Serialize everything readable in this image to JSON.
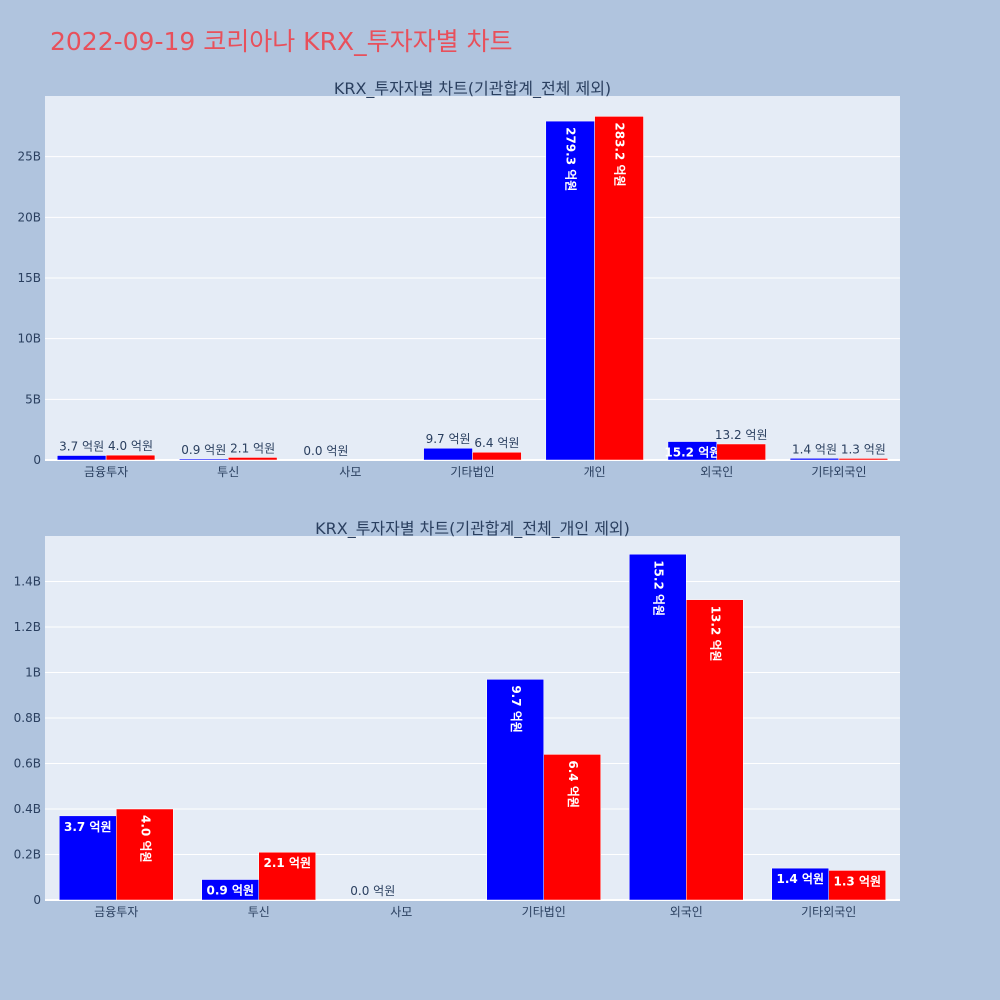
{
  "page_title": "2022-09-19 코리아나 KRX_투자자별 차트",
  "colors": {
    "buy": "#0000FF",
    "sell": "#FF0000",
    "plot_bg": "#E5ECF6",
    "page_bg": "#B0C4DE",
    "title": "#E8505B"
  },
  "chart_data": [
    {
      "type": "bar",
      "title": "KRX_투자자별 차트(기관합계_전체 제외)",
      "categories": [
        "금융투자",
        "투신",
        "사모",
        "기타법인",
        "개인",
        "외국인",
        "기타외국인"
      ],
      "series": [
        {
          "values": [
            370000000,
            90000000,
            0,
            970000000,
            27930000000,
            1520000000,
            140000000
          ],
          "labels": [
            "3.7 억원",
            "0.9 억원",
            "0.0 억원",
            "9.7 억원",
            "279.3 억원",
            "15.2 억원",
            "1.4 억원"
          ]
        },
        {
          "values": [
            400000000,
            210000000,
            0,
            640000000,
            28320000000,
            1320000000,
            130000000
          ],
          "labels": [
            "4.0 억원",
            "2.1 억원",
            "",
            "6.4 억원",
            "283.2 억원",
            "13.2 억원",
            "1.3 억원"
          ]
        }
      ],
      "ylim": [
        0,
        30000000000
      ],
      "yticks": [
        0,
        5000000000,
        10000000000,
        15000000000,
        20000000000,
        25000000000
      ],
      "ytick_labels": [
        "0",
        "5B",
        "10B",
        "15B",
        "20B",
        "25B"
      ],
      "grid": true
    },
    {
      "type": "bar",
      "title": "KRX_투자자별 차트(기관합계_전체_개인 제외)",
      "categories": [
        "금융투자",
        "투신",
        "사모",
        "기타법인",
        "외국인",
        "기타외국인"
      ],
      "series": [
        {
          "values": [
            370000000,
            90000000,
            0,
            970000000,
            1520000000,
            140000000
          ],
          "labels": [
            "3.7 억원",
            "0.9 억원",
            "0.0 억원",
            "9.7 억원",
            "15.2 억원",
            "1.4 억원"
          ]
        },
        {
          "values": [
            400000000,
            210000000,
            0,
            640000000,
            1320000000,
            130000000
          ],
          "labels": [
            "4.0 억원",
            "2.1 억원",
            "",
            "6.4 억원",
            "13.2 억원",
            "1.3 억원"
          ]
        }
      ],
      "ylim": [
        0,
        1600000000
      ],
      "yticks": [
        0,
        200000000,
        400000000,
        600000000,
        800000000,
        1000000000,
        1200000000,
        1400000000
      ],
      "ytick_labels": [
        "0",
        "0.2B",
        "0.4B",
        "0.6B",
        "0.8B",
        "1B",
        "1.2B",
        "1.4B"
      ],
      "grid": true
    }
  ]
}
